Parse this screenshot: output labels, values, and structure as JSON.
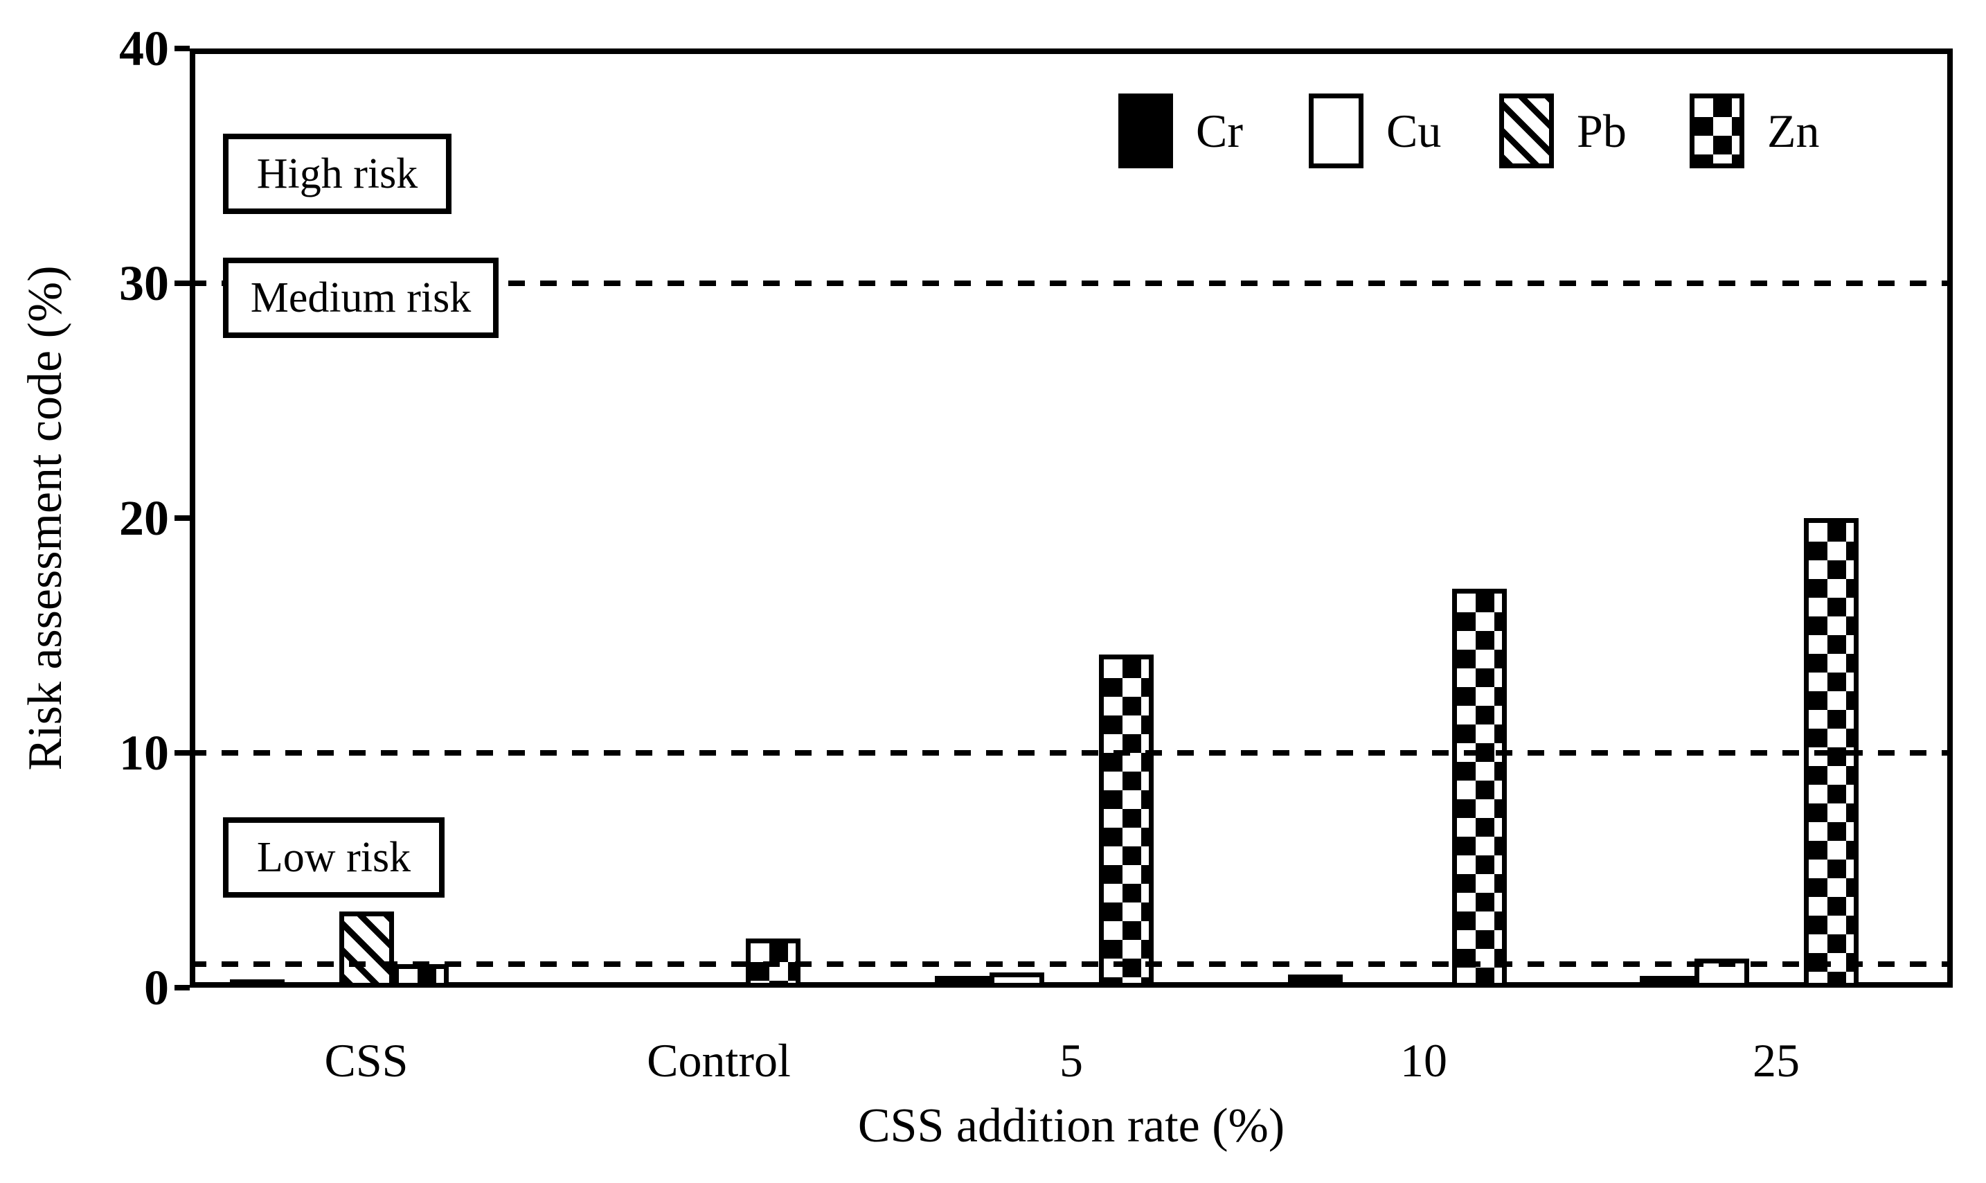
{
  "chart_data": {
    "type": "bar",
    "title": "",
    "categories": [
      "CSS",
      "Control",
      "5",
      "10",
      "25"
    ],
    "series": [
      {
        "name": "Cr",
        "pattern": "solid-black",
        "values": [
          0.35,
          0.15,
          0.5,
          0.55,
          0.5
        ]
      },
      {
        "name": "Cu",
        "pattern": "white",
        "values": [
          0,
          0,
          0.65,
          0,
          1.25
        ]
      },
      {
        "name": "Pb",
        "pattern": "diagonal-hatch",
        "values": [
          3.25,
          0,
          0,
          0,
          0
        ]
      },
      {
        "name": "Zn",
        "pattern": "checkerboard",
        "values": [
          1.0,
          2.1,
          14.2,
          17.0,
          20.0
        ]
      }
    ],
    "xlabel": "CSS addition rate (%)",
    "ylabel": "Risk assessment code (%)",
    "ylim": [
      0,
      40
    ],
    "yticks": [
      0,
      10,
      20,
      30,
      40
    ],
    "gridlines_dashed_at": [
      1,
      10,
      30
    ],
    "grid": "dashed horizontal threshold lines",
    "legend_position": "top-right-inside",
    "annotations": [
      {
        "label": "High risk",
        "y_value": 35
      },
      {
        "label": "Medium risk",
        "y_value": 20.5
      },
      {
        "label": "Low risk",
        "y_value": 5.5
      }
    ]
  },
  "colors": {
    "foreground": "#000000",
    "background": "#ffffff"
  }
}
